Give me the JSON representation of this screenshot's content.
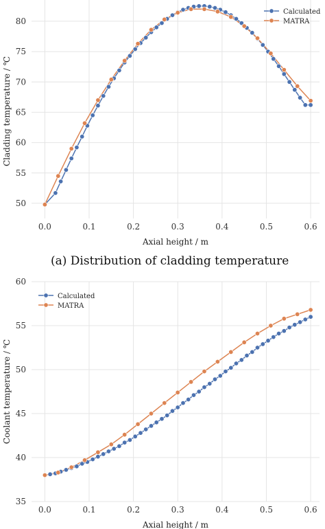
{
  "chart_data": [
    {
      "type": "line",
      "caption": "(a)    Distribution of cladding temperature",
      "xlabel": "Axial height / m",
      "ylabel": "Cladding temperature / ℃",
      "xlim": [
        -0.03,
        0.62
      ],
      "ylim": [
        47.5,
        83.5
      ],
      "xticks": [
        "0.0",
        "0.1",
        "0.2",
        "0.3",
        "0.4",
        "0.5",
        "0.6"
      ],
      "yticks": [
        "50",
        "55",
        "60",
        "65",
        "70",
        "75",
        "80"
      ],
      "grid": true,
      "legend_position": "top-right",
      "series": [
        {
          "name": "Calculated",
          "color": "#4c72b0",
          "x": [
            0.0,
            0.024,
            0.036,
            0.048,
            0.06,
            0.072,
            0.084,
            0.096,
            0.108,
            0.12,
            0.132,
            0.144,
            0.156,
            0.168,
            0.18,
            0.192,
            0.204,
            0.216,
            0.228,
            0.24,
            0.252,
            0.264,
            0.276,
            0.288,
            0.3,
            0.312,
            0.324,
            0.336,
            0.348,
            0.36,
            0.372,
            0.384,
            0.396,
            0.408,
            0.42,
            0.432,
            0.444,
            0.456,
            0.468,
            0.48,
            0.492,
            0.504,
            0.516,
            0.528,
            0.54,
            0.552,
            0.564,
            0.576,
            0.588,
            0.6
          ],
          "y": [
            49.8,
            51.7,
            53.6,
            55.5,
            57.4,
            59.2,
            61.0,
            62.8,
            64.5,
            66.1,
            67.7,
            69.2,
            70.6,
            71.9,
            73.2,
            74.3,
            75.4,
            76.4,
            77.3,
            78.2,
            79.0,
            79.7,
            80.4,
            81.0,
            81.5,
            81.9,
            82.2,
            82.4,
            82.5,
            82.5,
            82.4,
            82.2,
            81.9,
            81.5,
            81.0,
            80.4,
            79.7,
            78.9,
            78.1,
            77.1,
            76.1,
            75.0,
            73.8,
            72.6,
            71.3,
            70.0,
            68.7,
            67.4,
            66.2,
            66.2
          ]
        },
        {
          "name": "MATRA",
          "color": "#dd8452",
          "x": [
            0.0,
            0.03,
            0.06,
            0.09,
            0.12,
            0.15,
            0.18,
            0.21,
            0.24,
            0.27,
            0.3,
            0.33,
            0.36,
            0.39,
            0.42,
            0.45,
            0.48,
            0.51,
            0.54,
            0.57,
            0.6
          ],
          "y": [
            49.8,
            54.5,
            59.0,
            63.2,
            67.0,
            70.4,
            73.5,
            76.3,
            78.6,
            80.3,
            81.4,
            82.0,
            82.0,
            81.6,
            80.7,
            79.2,
            77.2,
            74.7,
            72.0,
            69.3,
            66.9
          ]
        }
      ]
    },
    {
      "type": "line",
      "xlabel": "Axial height / m",
      "ylabel": "Coolant temperature / ℃",
      "xlim": [
        -0.03,
        0.62
      ],
      "ylim": [
        35,
        60
      ],
      "xticks": [
        "0.0",
        "0.1",
        "0.2",
        "0.3",
        "0.4",
        "0.5",
        "0.6"
      ],
      "yticks": [
        "35",
        "40",
        "45",
        "50",
        "55",
        "60"
      ],
      "grid": true,
      "legend_position": "top-left",
      "series": [
        {
          "name": "Calculated",
          "color": "#4c72b0",
          "x": [
            0.0,
            0.012,
            0.024,
            0.036,
            0.048,
            0.06,
            0.072,
            0.084,
            0.096,
            0.108,
            0.12,
            0.132,
            0.144,
            0.156,
            0.168,
            0.18,
            0.192,
            0.204,
            0.216,
            0.228,
            0.24,
            0.252,
            0.264,
            0.276,
            0.288,
            0.3,
            0.312,
            0.324,
            0.336,
            0.348,
            0.36,
            0.372,
            0.384,
            0.396,
            0.408,
            0.42,
            0.432,
            0.444,
            0.456,
            0.468,
            0.48,
            0.492,
            0.504,
            0.516,
            0.528,
            0.54,
            0.552,
            0.564,
            0.576,
            0.588,
            0.6
          ],
          "y": [
            38.0,
            38.1,
            38.2,
            38.4,
            38.6,
            38.8,
            39.0,
            39.3,
            39.5,
            39.8,
            40.1,
            40.4,
            40.7,
            41.0,
            41.3,
            41.7,
            42.0,
            42.4,
            42.8,
            43.2,
            43.6,
            44.0,
            44.4,
            44.8,
            45.3,
            45.7,
            46.2,
            46.6,
            47.1,
            47.5,
            48.0,
            48.4,
            48.9,
            49.3,
            49.8,
            50.2,
            50.7,
            51.1,
            51.6,
            52.0,
            52.5,
            52.9,
            53.3,
            53.7,
            54.1,
            54.4,
            54.8,
            55.1,
            55.4,
            55.7,
            56.0
          ]
        },
        {
          "name": "MATRA",
          "color": "#dd8452",
          "x": [
            0.0,
            0.03,
            0.06,
            0.09,
            0.12,
            0.15,
            0.18,
            0.21,
            0.24,
            0.27,
            0.3,
            0.33,
            0.36,
            0.39,
            0.42,
            0.45,
            0.48,
            0.51,
            0.54,
            0.57,
            0.6
          ],
          "y": [
            38.0,
            38.3,
            38.9,
            39.7,
            40.6,
            41.5,
            42.6,
            43.8,
            45.0,
            46.2,
            47.4,
            48.6,
            49.8,
            50.9,
            52.0,
            53.1,
            54.1,
            55.0,
            55.8,
            56.3,
            56.8
          ]
        }
      ]
    }
  ]
}
